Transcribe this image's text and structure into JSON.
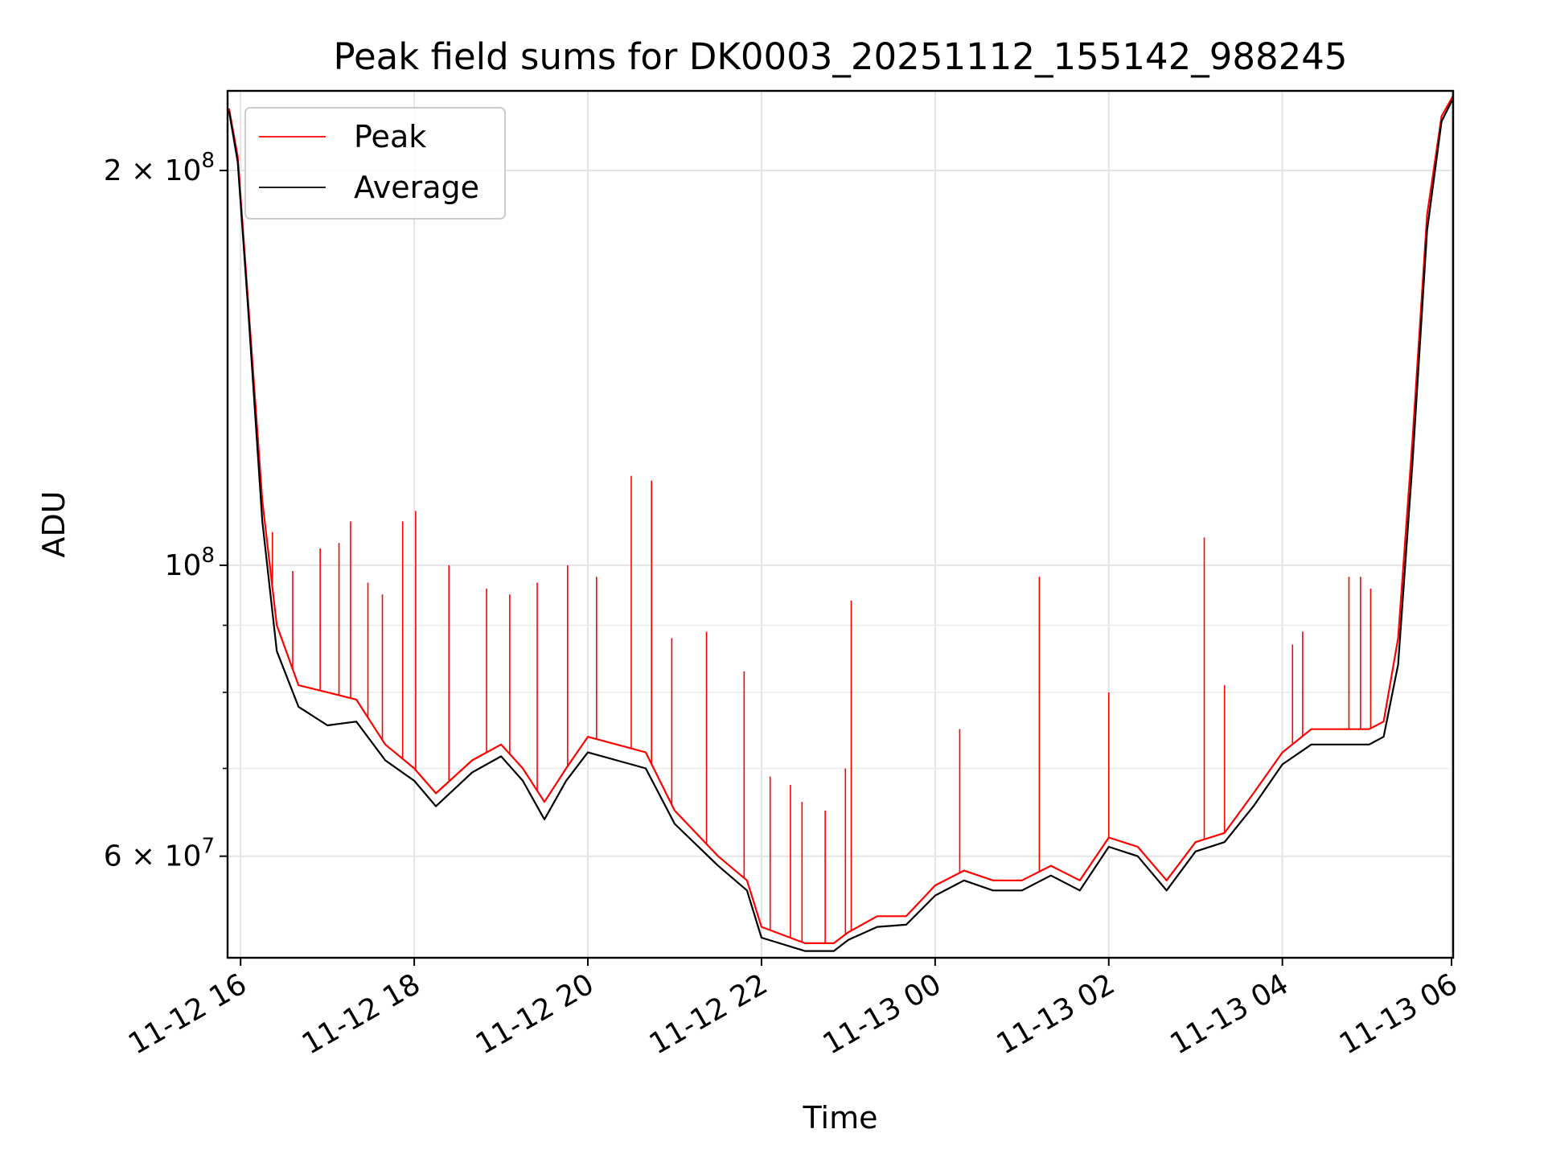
{
  "chart_data": {
    "type": "line",
    "title": "Peak field sums for DK0003_20251112_155142_988245",
    "xlabel": "Time",
    "ylabel": "ADU",
    "y_scale": "log",
    "grid": true,
    "legend_position": "top-left",
    "xlim": [
      "2025-11-12 15:51",
      "2025-11-13 05:58"
    ],
    "ylim": [
      50200000,
      230000000
    ],
    "x_ticks": [
      "11-12 16",
      "11-12 18",
      "11-12 20",
      "11-12 22",
      "11-13 00",
      "11-13 02",
      "11-13 04",
      "11-13 06"
    ],
    "y_ticks": [
      "2 × 10^8",
      "10^8",
      "6 × 10^7"
    ],
    "series": [
      {
        "name": "Peak",
        "color": "#ff0000",
        "x": [
          "2025-11-12 15:52",
          "2025-11-12 15:58",
          "2025-11-12 16:05",
          "2025-11-12 16:15",
          "2025-11-12 16:25",
          "2025-11-12 16:40",
          "2025-11-12 17:00",
          "2025-11-12 17:20",
          "2025-11-12 17:40",
          "2025-11-12 18:00",
          "2025-11-12 18:15",
          "2025-11-12 18:40",
          "2025-11-12 19:00",
          "2025-11-12 19:15",
          "2025-11-12 19:30",
          "2025-11-12 19:45",
          "2025-11-12 20:00",
          "2025-11-12 20:20",
          "2025-11-12 20:40",
          "2025-11-12 21:00",
          "2025-11-12 21:30",
          "2025-11-12 21:50",
          "2025-11-12 22:00",
          "2025-11-12 22:30",
          "2025-11-12 22:50",
          "2025-11-12 23:00",
          "2025-11-12 23:20",
          "2025-11-12 23:40",
          "2025-11-13 00:00",
          "2025-11-13 00:20",
          "2025-11-13 00:40",
          "2025-11-13 01:00",
          "2025-11-13 01:20",
          "2025-11-13 01:40",
          "2025-11-13 02:00",
          "2025-11-13 02:20",
          "2025-11-13 02:40",
          "2025-11-13 03:00",
          "2025-11-13 03:20",
          "2025-11-13 03:40",
          "2025-11-13 04:00",
          "2025-11-13 04:20",
          "2025-11-13 04:40",
          "2025-11-13 05:00",
          "2025-11-13 05:10",
          "2025-11-13 05:20",
          "2025-11-13 05:30",
          "2025-11-13 05:40",
          "2025-11-13 05:50",
          "2025-11-13 05:58"
        ],
        "values": [
          223000000,
          205000000,
          160000000,
          112000000,
          90000000,
          81000000,
          80000000,
          79000000,
          73000000,
          70000000,
          67000000,
          71000000,
          73000000,
          70000000,
          66000000,
          70000000,
          74000000,
          73000000,
          72000000,
          65000000,
          60000000,
          57500000,
          53000000,
          51500000,
          51500000,
          52500000,
          54000000,
          54000000,
          57000000,
          58500000,
          57500000,
          57500000,
          59000000,
          57500000,
          62000000,
          61000000,
          57500000,
          61500000,
          62500000,
          67000000,
          72000000,
          75000000,
          75000000,
          75000000,
          76000000,
          88000000,
          125000000,
          185000000,
          220000000,
          228000000
        ]
      },
      {
        "name": "Average",
        "color": "#000000",
        "x": [
          "2025-11-12 15:52",
          "2025-11-12 15:58",
          "2025-11-12 16:05",
          "2025-11-12 16:15",
          "2025-11-12 16:25",
          "2025-11-12 16:40",
          "2025-11-12 17:00",
          "2025-11-12 17:20",
          "2025-11-12 17:40",
          "2025-11-12 18:00",
          "2025-11-12 18:15",
          "2025-11-12 18:40",
          "2025-11-12 19:00",
          "2025-11-12 19:15",
          "2025-11-12 19:30",
          "2025-11-12 19:45",
          "2025-11-12 20:00",
          "2025-11-12 20:20",
          "2025-11-12 20:40",
          "2025-11-12 21:00",
          "2025-11-12 21:30",
          "2025-11-12 21:50",
          "2025-11-12 22:00",
          "2025-11-12 22:30",
          "2025-11-12 22:50",
          "2025-11-12 23:00",
          "2025-11-12 23:20",
          "2025-11-12 23:40",
          "2025-11-13 00:00",
          "2025-11-13 00:20",
          "2025-11-13 00:40",
          "2025-11-13 01:00",
          "2025-11-13 01:20",
          "2025-11-13 01:40",
          "2025-11-13 02:00",
          "2025-11-13 02:20",
          "2025-11-13 02:40",
          "2025-11-13 03:00",
          "2025-11-13 03:20",
          "2025-11-13 03:40",
          "2025-11-13 04:00",
          "2025-11-13 04:20",
          "2025-11-13 04:40",
          "2025-11-13 05:00",
          "2025-11-13 05:10",
          "2025-11-13 05:20",
          "2025-11-13 05:30",
          "2025-11-13 05:40",
          "2025-11-13 05:50",
          "2025-11-13 05:58"
        ],
        "values": [
          222000000,
          203000000,
          158000000,
          108000000,
          86000000,
          78000000,
          75500000,
          76000000,
          71000000,
          68500000,
          65500000,
          69500000,
          71500000,
          68500000,
          64000000,
          68500000,
          72000000,
          71000000,
          70000000,
          63500000,
          59000000,
          56500000,
          52000000,
          50800000,
          50800000,
          51800000,
          53000000,
          53200000,
          56000000,
          57500000,
          56500000,
          56500000,
          58000000,
          56500000,
          61000000,
          60000000,
          56500000,
          60500000,
          61500000,
          65500000,
          70500000,
          73000000,
          73000000,
          73000000,
          74000000,
          84000000,
          120000000,
          180000000,
          218000000,
          227000000
        ]
      }
    ],
    "spikes": {
      "name": "Peak",
      "x": [
        "2025-11-12 16:22",
        "2025-11-12 16:36",
        "2025-11-12 16:55",
        "2025-11-12 17:08",
        "2025-11-12 17:16",
        "2025-11-12 17:28",
        "2025-11-12 17:38",
        "2025-11-12 17:52",
        "2025-11-12 18:01",
        "2025-11-12 18:24",
        "2025-11-12 18:50",
        "2025-11-12 19:06",
        "2025-11-12 19:25",
        "2025-11-12 19:46",
        "2025-11-12 20:06",
        "2025-11-12 20:30",
        "2025-11-12 20:44",
        "2025-11-12 20:58",
        "2025-11-12 21:22",
        "2025-11-12 21:48",
        "2025-11-12 22:06",
        "2025-11-12 22:20",
        "2025-11-12 22:28",
        "2025-11-12 22:44",
        "2025-11-12 22:58",
        "2025-11-12 23:02",
        "2025-11-13 00:17",
        "2025-11-13 01:12",
        "2025-11-13 02:00",
        "2025-11-13 03:06",
        "2025-11-13 03:20",
        "2025-11-13 04:07",
        "2025-11-13 04:14",
        "2025-11-13 04:46",
        "2025-11-13 04:54",
        "2025-11-13 05:01"
      ],
      "values": [
        106000000,
        99000000,
        103000000,
        104000000,
        108000000,
        97000000,
        95000000,
        108000000,
        110000000,
        100000000,
        96000000,
        95000000,
        97000000,
        100000000,
        98000000,
        117000000,
        116000000,
        88000000,
        89000000,
        83000000,
        69000000,
        68000000,
        66000000,
        65000000,
        70000000,
        94000000,
        75000000,
        98000000,
        80000000,
        105000000,
        81000000,
        87000000,
        89000000,
        98000000,
        98000000,
        96000000
      ]
    }
  }
}
